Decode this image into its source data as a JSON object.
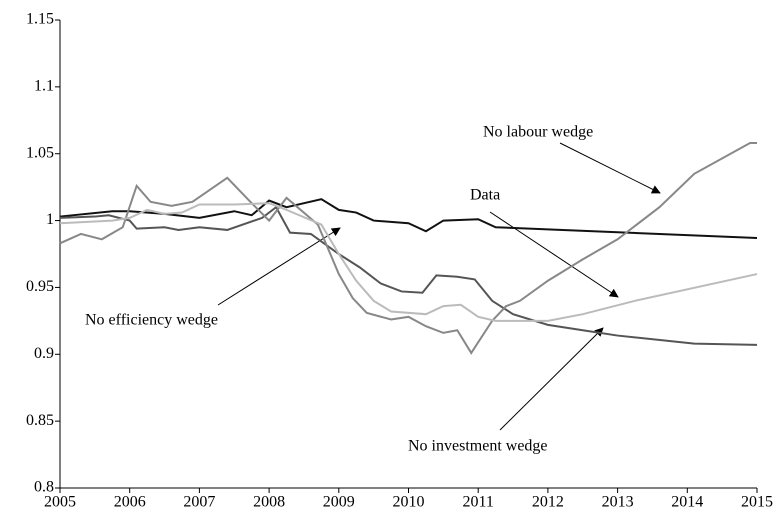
{
  "chart_data": {
    "type": "line",
    "xlim": [
      2005,
      2015
    ],
    "xticks": [
      2005,
      2006,
      2007,
      2008,
      2009,
      2010,
      2011,
      2012,
      2013,
      2014,
      2015
    ],
    "ylim": [
      0.8,
      1.15
    ],
    "yticks": [
      0.8,
      0.85,
      0.9,
      0.95,
      1,
      1.05,
      1.1,
      1.15
    ],
    "grid": false,
    "annotations": [
      "No labour wedge",
      "Data",
      "No efficiency wedge",
      "No investment wedge"
    ],
    "series": [
      {
        "name": "No efficiency wedge",
        "color": "#111111",
        "x": [
          2005,
          2005.75,
          2006,
          2006.5,
          2007,
          2007.5,
          2007.75,
          2008,
          2008.25,
          2008.75,
          2009,
          2009.25,
          2009.5,
          2010,
          2010.25,
          2010.5,
          2011,
          2011.25,
          2015
        ],
        "values": [
          1.003,
          1.007,
          1.007,
          1.005,
          1.002,
          1.007,
          1.004,
          1.015,
          1.01,
          1.016,
          1.008,
          1.006,
          1.0,
          0.998,
          0.992,
          1.0,
          1.001,
          0.995,
          0.987
        ]
      },
      {
        "name": "No investment wedge",
        "color": "#555555",
        "x": [
          2005,
          2005.5,
          2005.7,
          2006,
          2006.1,
          2006.5,
          2006.7,
          2007,
          2007.4,
          2007.9,
          2008.1,
          2008.3,
          2008.6,
          2009,
          2009.3,
          2009.6,
          2009.9,
          2010.2,
          2010.4,
          2010.7,
          2010.95,
          2011.2,
          2011.5,
          2012,
          2012.5,
          2013,
          2014.1,
          2015
        ],
        "values": [
          1.002,
          1.003,
          1.004,
          1.0,
          0.994,
          0.995,
          0.993,
          0.995,
          0.993,
          1.002,
          1.01,
          0.991,
          0.99,
          0.975,
          0.965,
          0.953,
          0.947,
          0.946,
          0.959,
          0.958,
          0.956,
          0.94,
          0.93,
          0.922,
          0.918,
          0.914,
          0.908,
          0.907
        ]
      },
      {
        "name": "No labour wedge",
        "color": "#888888",
        "x": [
          2005,
          2005.3,
          2005.6,
          2005.9,
          2006.1,
          2006.3,
          2006.6,
          2006.9,
          2007.4,
          2007.75,
          2008,
          2008.25,
          2008.7,
          2009,
          2009.2,
          2009.4,
          2009.75,
          2010,
          2010.25,
          2010.5,
          2010.7,
          2010.9,
          2011.2,
          2011.4,
          2011.6,
          2012,
          2012.5,
          2013,
          2013.6,
          2014.1,
          2014.9,
          2015
        ],
        "values": [
          0.983,
          0.99,
          0.986,
          0.995,
          1.026,
          1.014,
          1.011,
          1.014,
          1.032,
          1.013,
          1.0,
          1.017,
          0.997,
          0.96,
          0.942,
          0.931,
          0.926,
          0.928,
          0.921,
          0.916,
          0.918,
          0.901,
          0.925,
          0.936,
          0.94,
          0.955,
          0.971,
          0.986,
          1.01,
          1.035,
          1.058,
          1.058
        ]
      },
      {
        "name": "Data",
        "color": "#bbbbbb",
        "x": [
          2005,
          2005.75,
          2006,
          2006.25,
          2006.5,
          2006.75,
          2007,
          2007.5,
          2008,
          2008.25,
          2008.75,
          2009,
          2009.25,
          2009.5,
          2009.75,
          2010.25,
          2010.5,
          2010.75,
          2011,
          2011.25,
          2012,
          2012.5,
          2013.25,
          2015
        ],
        "values": [
          0.998,
          1.0,
          1.002,
          1.008,
          1.005,
          1.006,
          1.012,
          1.012,
          1.013,
          1.008,
          0.997,
          0.975,
          0.955,
          0.94,
          0.932,
          0.93,
          0.936,
          0.937,
          0.928,
          0.925,
          0.925,
          0.93,
          0.94,
          0.96
        ]
      }
    ]
  }
}
